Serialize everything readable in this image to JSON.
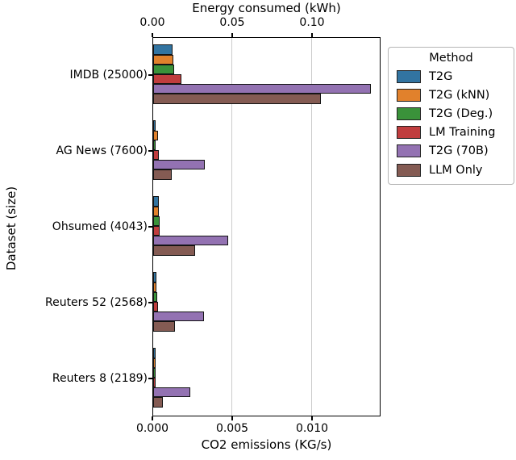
{
  "chart_data": {
    "type": "bar",
    "orientation": "horizontal",
    "xlabel": "CO2 emissions (KG/s)",
    "x2label": "Energy consumed (kWh)",
    "ylabel": "Dataset (size)",
    "legend_title": "Method",
    "legend_position": "outside upper right",
    "grid": "vertical gridlines at bottom-axis ticks",
    "bar_edge_color": "#141414",
    "categories": [
      "IMDB (25000)",
      "AG News (7600)",
      "Ohsumed (4043)",
      "Reuters 52 (2568)",
      "Reuters 8 (2189)"
    ],
    "x_ticks": {
      "labels": [
        "0.000",
        "0.005",
        "0.010"
      ],
      "values": [
        0,
        0.005,
        0.01
      ]
    },
    "x2_ticks": {
      "labels": [
        "0.00",
        "0.05",
        "0.10"
      ],
      "values": [
        0,
        0.05,
        0.1
      ]
    },
    "xlim": [
      0,
      0.0143
    ],
    "x2lim": [
      0,
      0.143
    ],
    "axes_note": "Both axes share the same bars; energy (kWh) reads as 10 x CO2 (KG/s)",
    "series": [
      {
        "name": "T2G",
        "color": "#3274a1",
        "values_kg_s": [
          0.00123,
          0.00017,
          0.00037,
          0.00019,
          0.00012
        ]
      },
      {
        "name": "T2G (kNN)",
        "color": "#e1812c",
        "values_kg_s": [
          0.00126,
          0.00029,
          0.00034,
          0.00022,
          0.00012
        ]
      },
      {
        "name": "T2G (Deg.)",
        "color": "#3a923a",
        "values_kg_s": [
          0.00131,
          0.00017,
          0.00039,
          0.00025,
          0.0001
        ]
      },
      {
        "name": "LM Training",
        "color": "#c03d3e",
        "values_kg_s": [
          0.00177,
          0.00034,
          0.00039,
          0.0003,
          9e-05
        ]
      },
      {
        "name": "T2G (70B)",
        "color": "#9372b2",
        "values_kg_s": [
          0.01361,
          0.00325,
          0.00471,
          0.0032,
          0.00231
        ]
      },
      {
        "name": "LLM Only",
        "color": "#845b53",
        "values_kg_s": [
          0.01051,
          0.00118,
          0.00264,
          0.00135,
          0.00059
        ]
      }
    ]
  }
}
